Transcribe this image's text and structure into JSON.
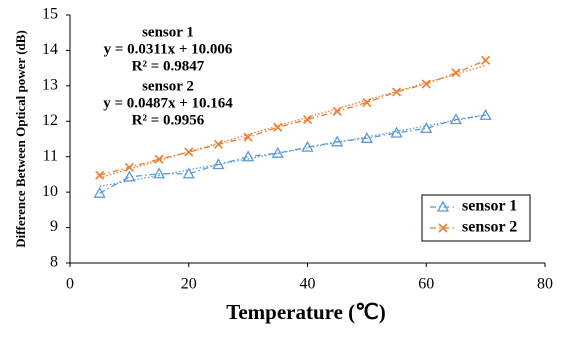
{
  "chart_data": {
    "type": "line",
    "xlabel": "Temperature (℃)",
    "ylabel": "Difference Between Optical power (dB)",
    "x": [
      5,
      10,
      15,
      20,
      25,
      30,
      35,
      40,
      45,
      50,
      55,
      60,
      65,
      70
    ],
    "xlim": [
      0,
      80
    ],
    "xticks": [
      0,
      20,
      40,
      60,
      80
    ],
    "ylim": [
      8,
      15
    ],
    "yticks": [
      8,
      9,
      10,
      11,
      12,
      13,
      14,
      15
    ],
    "grid": false,
    "legend": "lower right",
    "series": [
      {
        "name": "sensor 1",
        "color": "#5b9bd5",
        "marker": "triangle",
        "values": [
          9.97,
          10.43,
          10.52,
          10.52,
          10.78,
          11.0,
          11.1,
          11.27,
          11.42,
          11.52,
          11.67,
          11.8,
          12.05,
          12.17
        ],
        "trendline": {
          "slope": 0.0311,
          "intercept": 10.006,
          "equation": "y = 0.0311x + 10.006",
          "r2": "R² = 0.9847"
        }
      },
      {
        "name": "sensor 2",
        "color": "#ed7d31",
        "marker": "x",
        "values": [
          10.48,
          10.7,
          10.93,
          11.13,
          11.35,
          11.55,
          11.83,
          12.05,
          12.28,
          12.53,
          12.83,
          13.05,
          13.37,
          13.72
        ],
        "trendline": {
          "slope": 0.0487,
          "intercept": 10.164,
          "equation": "y = 0.0487x + 10.164",
          "r2": "R² = 0.9956"
        }
      }
    ]
  }
}
